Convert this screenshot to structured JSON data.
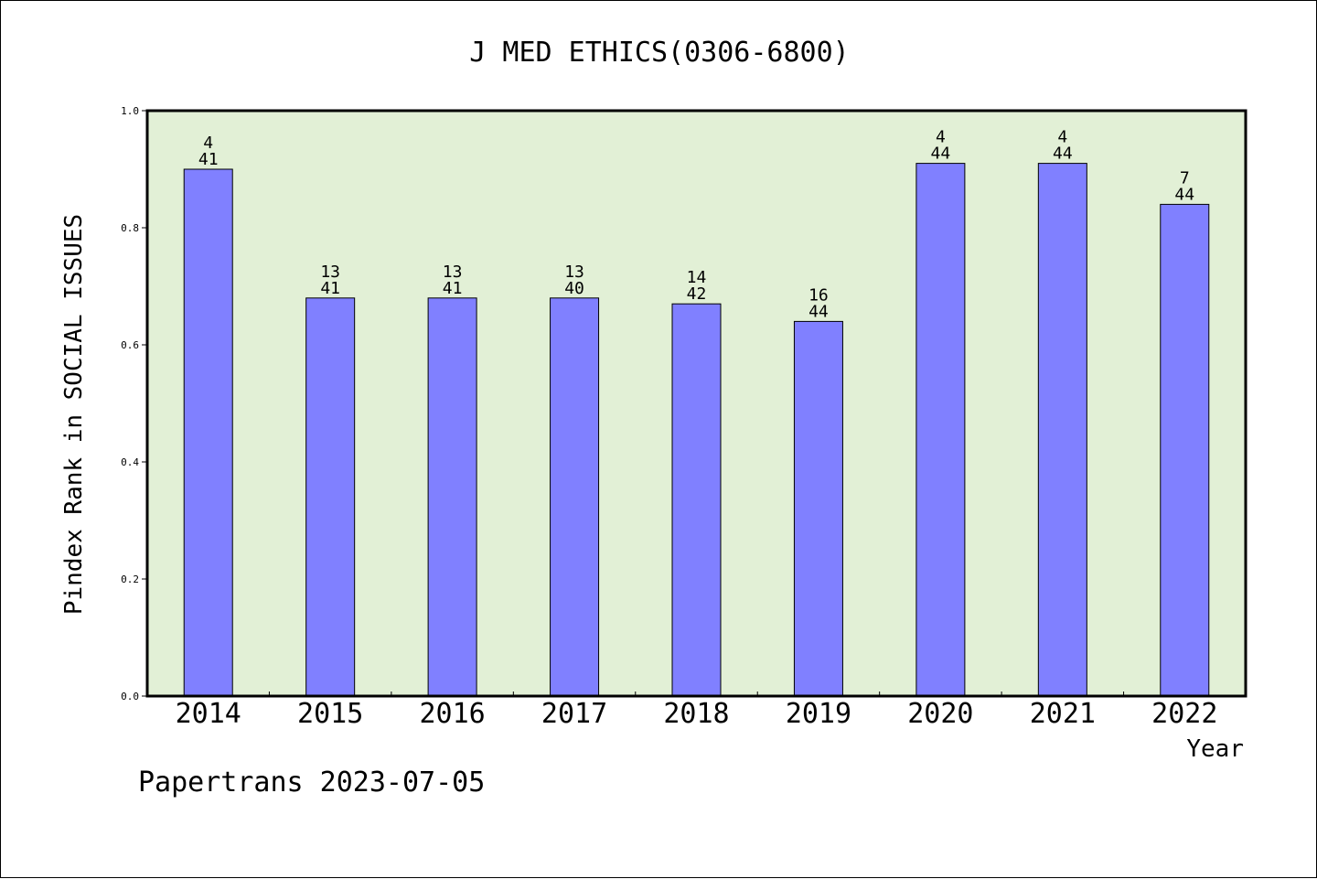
{
  "chart_data": {
    "type": "bar",
    "title": "J MED ETHICS(0306-6800)",
    "xlabel": "Year",
    "ylabel": "Pindex Rank in SOCIAL ISSUES",
    "ylim": [
      0,
      1.0
    ],
    "yticks": [
      "0.0",
      "0.2",
      "0.4",
      "0.6",
      "0.8",
      "1.0"
    ],
    "categories": [
      "2014",
      "2015",
      "2016",
      "2017",
      "2018",
      "2019",
      "2020",
      "2021",
      "2022"
    ],
    "values": [
      0.9,
      0.68,
      0.68,
      0.68,
      0.67,
      0.64,
      0.91,
      0.91,
      0.84
    ],
    "rank": [
      "4",
      "13",
      "13",
      "13",
      "14",
      "16",
      "4",
      "4",
      "7"
    ],
    "total": [
      "41",
      "41",
      "41",
      "40",
      "42",
      "44",
      "44",
      "44",
      "44"
    ],
    "grid": false,
    "legend": "none"
  },
  "footer": "Papertrans 2023-07-05",
  "colors": {
    "plot_background": "#e2f0d6",
    "bar_fill": "#8080ff",
    "bar_stroke": "#000000"
  }
}
